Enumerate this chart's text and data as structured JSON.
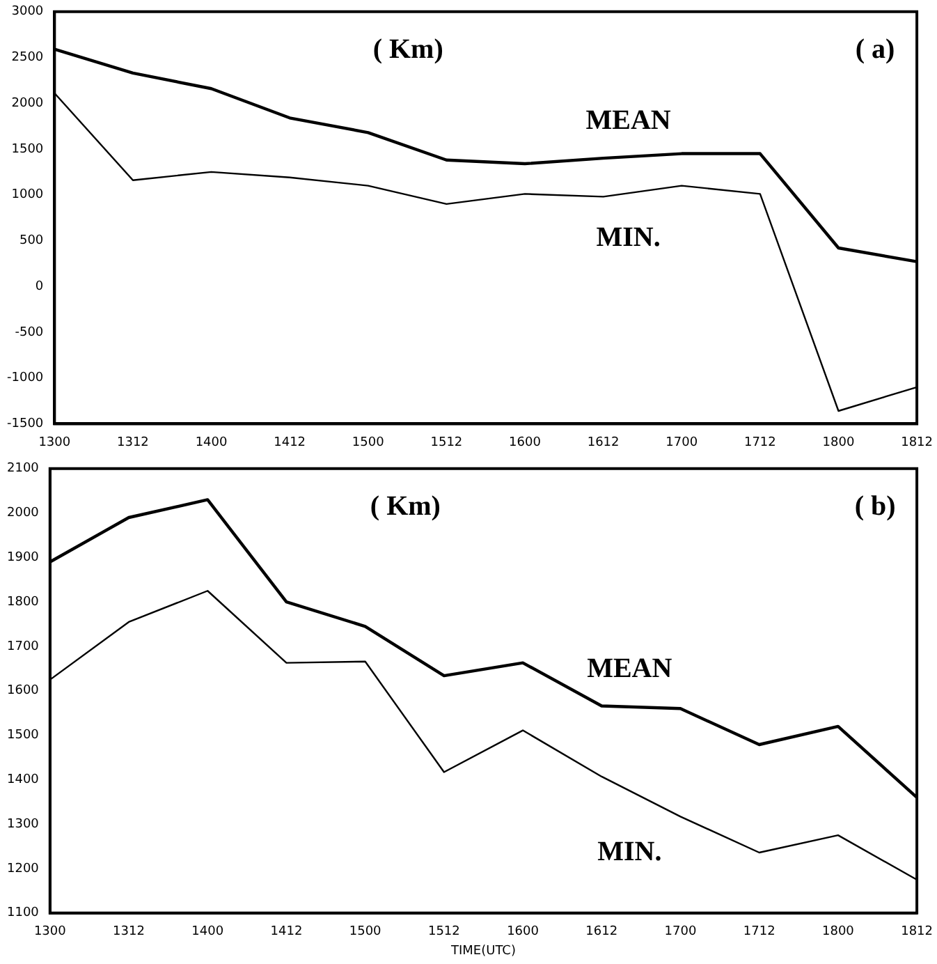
{
  "chart_data": [
    {
      "type": "line",
      "annotations": [
        "( Km)",
        "( a)"
      ],
      "categories": [
        "1300",
        "1312",
        "1400",
        "1412",
        "1500",
        "1512",
        "1600",
        "1612",
        "1700",
        "1712",
        "1800",
        "1812"
      ],
      "series": [
        {
          "name": "MEAN",
          "color": "#000000",
          "values": [
            2590,
            2330,
            2160,
            1840,
            1680,
            1380,
            1340,
            1400,
            1450,
            1450,
            420,
            270
          ]
        },
        {
          "name": "MIN.",
          "color": "#000000",
          "values": [
            2110,
            1160,
            1250,
            1190,
            1100,
            900,
            1010,
            980,
            1100,
            1010,
            -1360,
            -1100
          ]
        }
      ],
      "ylim": [
        -1500,
        3000
      ],
      "yticks": [
        -1500,
        -1000,
        -500,
        0,
        500,
        1000,
        1500,
        2000,
        2500,
        3000
      ],
      "grid": false,
      "legend": false,
      "marker": "none",
      "line_style": "solid"
    },
    {
      "type": "line",
      "xlabel": "TIME(UTC)",
      "annotations": [
        "( Km)",
        "( b)"
      ],
      "categories": [
        "1300",
        "1312",
        "1400",
        "1412",
        "1500",
        "1512",
        "1600",
        "1612",
        "1700",
        "1712",
        "1800",
        "1812"
      ],
      "series": [
        {
          "name": "MEAN",
          "color": "#000000",
          "values": [
            1890,
            1990,
            2030,
            1800,
            1745,
            1634,
            1663,
            1566,
            1560,
            1479,
            1520,
            1360
          ]
        },
        {
          "name": "MIN.",
          "color": "#000000",
          "values": [
            1625,
            1755,
            1825,
            1663,
            1666,
            1417,
            1511,
            1407,
            1317,
            1236,
            1275,
            1175
          ]
        }
      ],
      "ylim": [
        1100,
        2100
      ],
      "yticks": [
        1100,
        1200,
        1300,
        1400,
        1500,
        1600,
        1700,
        1800,
        1900,
        2000,
        2100
      ],
      "grid": false,
      "legend": false,
      "marker": "none",
      "line_style": "solid"
    }
  ]
}
